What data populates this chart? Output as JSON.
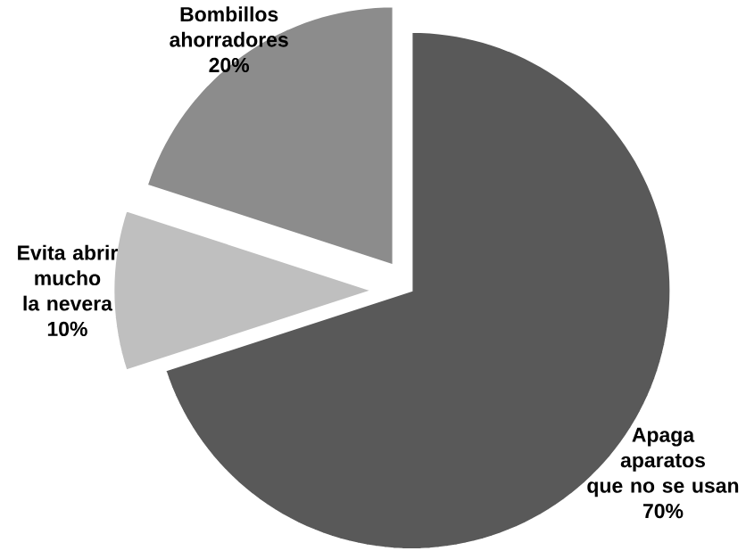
{
  "chart_data": {
    "type": "pie",
    "categories": [
      "Apaga aparatos que no se usan",
      "Evita abrir mucho la nevera",
      "Bombillos ahorradores"
    ],
    "values": [
      70,
      10,
      20
    ],
    "value_labels": [
      "70%",
      "10%",
      "20%"
    ],
    "colors": [
      "#595959",
      "#bfbfbf",
      "#8c8c8c"
    ]
  }
}
